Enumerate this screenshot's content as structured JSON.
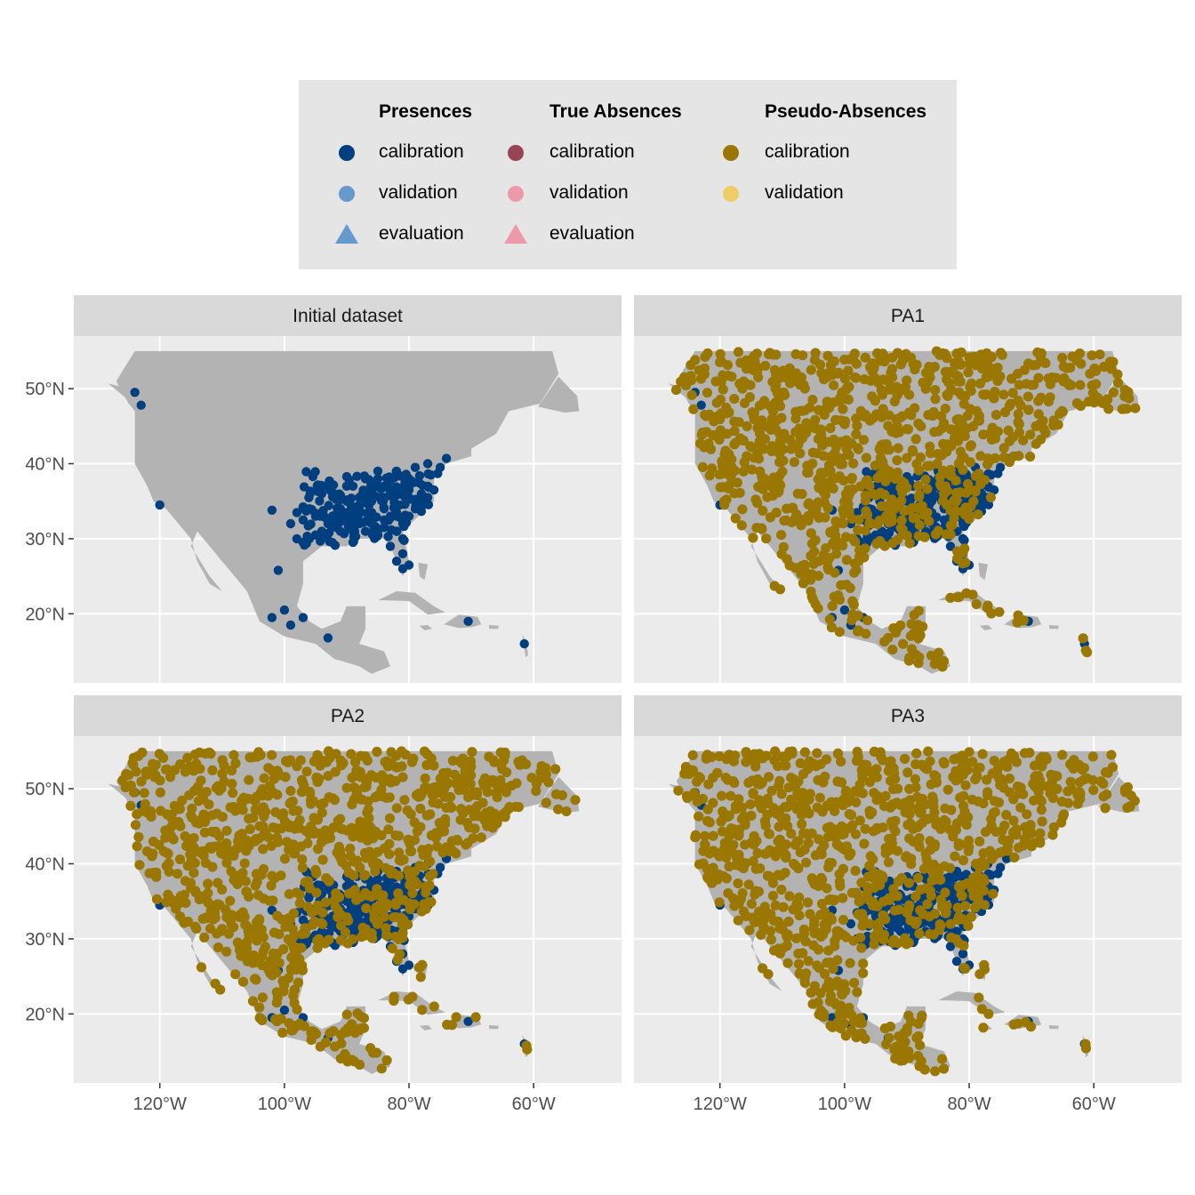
{
  "legend": {
    "groups": [
      {
        "title": "Presences",
        "items": [
          {
            "label": "calibration",
            "shape": "circle",
            "color": "#003f7f"
          },
          {
            "label": "validation",
            "shape": "circle",
            "color": "#6699cc"
          },
          {
            "label": "evaluation",
            "shape": "triangle",
            "color": "#6699cc"
          }
        ]
      },
      {
        "title": "True Absences",
        "items": [
          {
            "label": "calibration",
            "shape": "circle",
            "color": "#994455"
          },
          {
            "label": "validation",
            "shape": "circle",
            "color": "#ee99aa"
          },
          {
            "label": "evaluation",
            "shape": "triangle",
            "color": "#ee99aa"
          }
        ]
      },
      {
        "title": "Pseudo-Absences",
        "items": [
          {
            "label": "calibration",
            "shape": "circle",
            "color": "#997700"
          },
          {
            "label": "validation",
            "shape": "circle",
            "color": "#eecc66"
          }
        ]
      }
    ]
  },
  "map": {
    "panels": [
      "Initial dataset",
      "PA1",
      "PA2",
      "PA3"
    ],
    "lon_ticks": [
      -120,
      -100,
      -80,
      -60
    ],
    "lon_tick_labels": [
      "120°W",
      "100°W",
      "80°W",
      "60°W"
    ],
    "lat_ticks": [
      20,
      30,
      40,
      50
    ],
    "lat_tick_labels": [
      "20°N",
      "30°N",
      "40°N",
      "50°N"
    ],
    "lon_range": [
      -133.8,
      -45.9
    ],
    "lat_range": [
      10.8,
      57.0
    ],
    "land_color": "#b3b3b3",
    "panel_bg": "#ebebeb",
    "strip_bg": "#d9d9d9"
  }
}
